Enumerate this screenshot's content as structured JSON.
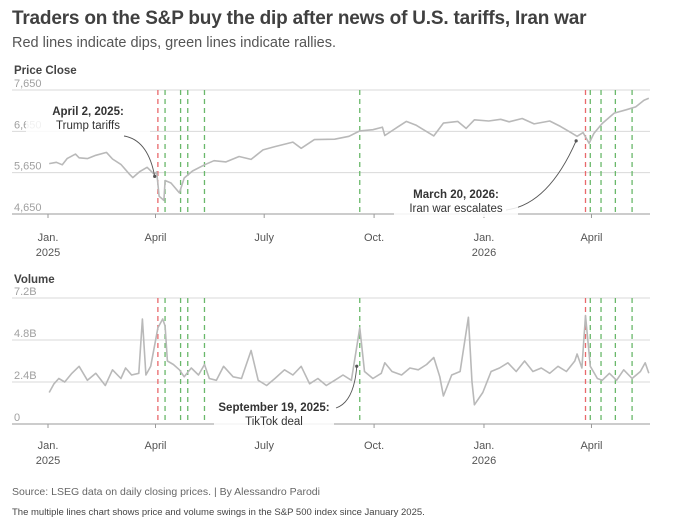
{
  "header": {
    "title": "Traders on the S&P buy the dip after news of U.S. tariffs, Iran war",
    "subtitle": "Red lines indicate dips, green lines indicate rallies."
  },
  "footer": {
    "source": "Source: LSEG data on daily closing prices. | By Alessandro Parodi",
    "description": "The multiple lines chart shows price and volume swings in the S&P 500 index since January 2025."
  },
  "colors": {
    "line": "#b9b9b9",
    "dip": "#e8696b",
    "rally": "#69b86a",
    "grid": "#d9d9d9",
    "axis": "#9a9a9a",
    "text": "#555555"
  },
  "chart_data": [
    {
      "type": "line",
      "title": "Price Close",
      "x_axis": {
        "range": [
          "2025-01-01",
          "2026-05-20"
        ],
        "ticks": [
          {
            "date": "2025-01-01",
            "label": "Jan.",
            "sublabel": "2025"
          },
          {
            "date": "2025-04-01",
            "label": "April",
            "sublabel": ""
          },
          {
            "date": "2025-07-01",
            "label": "July",
            "sublabel": ""
          },
          {
            "date": "2025-10-01",
            "label": "Oct.",
            "sublabel": ""
          },
          {
            "date": "2026-01-01",
            "label": "Jan.",
            "sublabel": "2026"
          },
          {
            "date": "2026-04-01",
            "label": "April",
            "sublabel": ""
          }
        ]
      },
      "y_axis": {
        "ylim": [
          4650,
          7650
        ],
        "ticks": [
          {
            "value": 4650,
            "label": "4,650"
          },
          {
            "value": 5650,
            "label": "5,650"
          },
          {
            "value": 6650,
            "label": "6,650"
          },
          {
            "value": 7650,
            "label": "7,650"
          }
        ]
      },
      "grid": true,
      "series": [
        {
          "points": [
            [
              "2025-01-02",
              5870
            ],
            [
              "2025-01-08",
              5900
            ],
            [
              "2025-01-13",
              5840
            ],
            [
              "2025-01-17",
              5990
            ],
            [
              "2025-01-24",
              6100
            ],
            [
              "2025-01-27",
              6010
            ],
            [
              "2025-02-03",
              5990
            ],
            [
              "2025-02-10",
              6070
            ],
            [
              "2025-02-19",
              6140
            ],
            [
              "2025-02-24",
              5980
            ],
            [
              "2025-03-03",
              5850
            ],
            [
              "2025-03-10",
              5620
            ],
            [
              "2025-03-13",
              5530
            ],
            [
              "2025-03-19",
              5680
            ],
            [
              "2025-03-25",
              5780
            ],
            [
              "2025-03-31",
              5610
            ],
            [
              "2025-04-02",
              5670
            ],
            [
              "2025-04-04",
              5080
            ],
            [
              "2025-04-08",
              4980
            ],
            [
              "2025-04-09",
              5460
            ],
            [
              "2025-04-14",
              5400
            ],
            [
              "2025-04-21",
              5160
            ],
            [
              "2025-04-25",
              5520
            ],
            [
              "2025-05-02",
              5690
            ],
            [
              "2025-05-12",
              5840
            ],
            [
              "2025-05-20",
              5940
            ],
            [
              "2025-05-30",
              5910
            ],
            [
              "2025-06-10",
              6040
            ],
            [
              "2025-06-20",
              5970
            ],
            [
              "2025-06-30",
              6200
            ],
            [
              "2025-07-10",
              6280
            ],
            [
              "2025-07-25",
              6390
            ],
            [
              "2025-08-01",
              6240
            ],
            [
              "2025-08-12",
              6450
            ],
            [
              "2025-08-29",
              6460
            ],
            [
              "2025-09-10",
              6530
            ],
            [
              "2025-09-19",
              6660
            ],
            [
              "2025-09-30",
              6690
            ],
            [
              "2025-10-08",
              6750
            ],
            [
              "2025-10-10",
              6550
            ],
            [
              "2025-10-20",
              6740
            ],
            [
              "2025-10-28",
              6890
            ],
            [
              "2025-11-05",
              6800
            ],
            [
              "2025-11-20",
              6540
            ],
            [
              "2025-11-28",
              6850
            ],
            [
              "2025-12-10",
              6890
            ],
            [
              "2025-12-17",
              6720
            ],
            [
              "2025-12-24",
              6930
            ],
            [
              "2026-01-05",
              6900
            ],
            [
              "2026-01-15",
              6940
            ],
            [
              "2026-01-22",
              6880
            ],
            [
              "2026-02-02",
              6960
            ],
            [
              "2026-02-12",
              6830
            ],
            [
              "2026-02-25",
              6900
            ],
            [
              "2026-03-06",
              6770
            ],
            [
              "2026-03-13",
              6650
            ],
            [
              "2026-03-20",
              6530
            ],
            [
              "2026-03-25",
              6620
            ],
            [
              "2026-03-30",
              6360
            ],
            [
              "2026-04-03",
              6600
            ],
            [
              "2026-04-10",
              6840
            ],
            [
              "2026-04-20",
              7090
            ],
            [
              "2026-04-30",
              7170
            ],
            [
              "2026-05-08",
              7240
            ],
            [
              "2026-05-15",
              7400
            ],
            [
              "2026-05-19",
              7450
            ]
          ]
        }
      ],
      "event_lines": {
        "dips": [
          "2025-04-03",
          "2026-03-27"
        ],
        "rallies": [
          "2025-04-09",
          "2025-04-22",
          "2025-04-28",
          "2025-05-12",
          "2025-09-19",
          "2026-03-31",
          "2026-04-09",
          "2026-04-21",
          "2026-05-05"
        ]
      },
      "annotations": [
        {
          "date": "2025-04-02",
          "bold": "April 2, 2025:",
          "text": "Trump tariffs"
        },
        {
          "date": "2026-03-20",
          "bold": "March 20, 2026:",
          "text": "Iran war escalates"
        }
      ]
    },
    {
      "type": "line",
      "title": "Volume",
      "x_axis": {
        "range": [
          "2025-01-01",
          "2026-05-20"
        ],
        "ticks": [
          {
            "date": "2025-01-01",
            "label": "Jan.",
            "sublabel": "2025"
          },
          {
            "date": "2025-04-01",
            "label": "April",
            "sublabel": ""
          },
          {
            "date": "2025-07-01",
            "label": "July",
            "sublabel": ""
          },
          {
            "date": "2025-10-01",
            "label": "Oct.",
            "sublabel": ""
          },
          {
            "date": "2026-01-01",
            "label": "Jan.",
            "sublabel": "2026"
          },
          {
            "date": "2026-04-01",
            "label": "April",
            "sublabel": ""
          }
        ]
      },
      "y_axis": {
        "ylim": [
          0,
          7.2
        ],
        "unit": "billions",
        "ticks": [
          {
            "value": 0,
            "label": "0"
          },
          {
            "value": 2.4,
            "label": "2.4B"
          },
          {
            "value": 4.8,
            "label": "4.8B"
          },
          {
            "value": 7.2,
            "label": "7.2B"
          }
        ]
      },
      "grid": true,
      "series": [
        {
          "points": [
            [
              "2025-01-02",
              1.8
            ],
            [
              "2025-01-06",
              2.3
            ],
            [
              "2025-01-10",
              2.6
            ],
            [
              "2025-01-15",
              2.4
            ],
            [
              "2025-01-21",
              2.9
            ],
            [
              "2025-01-27",
              3.3
            ],
            [
              "2025-02-03",
              2.5
            ],
            [
              "2025-02-10",
              2.9
            ],
            [
              "2025-02-18",
              2.2
            ],
            [
              "2025-02-24",
              3.1
            ],
            [
              "2025-03-03",
              2.6
            ],
            [
              "2025-03-07",
              3.2
            ],
            [
              "2025-03-12",
              2.8
            ],
            [
              "2025-03-18",
              2.9
            ],
            [
              "2025-03-21",
              6.0
            ],
            [
              "2025-03-24",
              2.8
            ],
            [
              "2025-03-28",
              3.3
            ],
            [
              "2025-04-03",
              5.5
            ],
            [
              "2025-04-07",
              6.0
            ],
            [
              "2025-04-09",
              5.6
            ],
            [
              "2025-04-11",
              3.6
            ],
            [
              "2025-04-16",
              3.4
            ],
            [
              "2025-04-21",
              3.1
            ],
            [
              "2025-04-25",
              2.7
            ],
            [
              "2025-05-01",
              3.2
            ],
            [
              "2025-05-07",
              2.8
            ],
            [
              "2025-05-12",
              3.4
            ],
            [
              "2025-05-16",
              2.6
            ],
            [
              "2025-05-22",
              2.5
            ],
            [
              "2025-05-28",
              3.3
            ],
            [
              "2025-06-05",
              2.7
            ],
            [
              "2025-06-12",
              2.6
            ],
            [
              "2025-06-20",
              4.2
            ],
            [
              "2025-06-26",
              2.5
            ],
            [
              "2025-07-03",
              2.2
            ],
            [
              "2025-07-10",
              2.6
            ],
            [
              "2025-07-18",
              3.1
            ],
            [
              "2025-07-25",
              2.8
            ],
            [
              "2025-08-01",
              3.3
            ],
            [
              "2025-08-08",
              2.3
            ],
            [
              "2025-08-15",
              2.6
            ],
            [
              "2025-08-22",
              2.2
            ],
            [
              "2025-08-29",
              2.5
            ],
            [
              "2025-09-05",
              2.8
            ],
            [
              "2025-09-12",
              2.5
            ],
            [
              "2025-09-19",
              5.5
            ],
            [
              "2025-09-23",
              3.0
            ],
            [
              "2025-09-30",
              2.6
            ],
            [
              "2025-10-07",
              2.9
            ],
            [
              "2025-10-10",
              3.5
            ],
            [
              "2025-10-16",
              3.0
            ],
            [
              "2025-10-24",
              2.8
            ],
            [
              "2025-10-31",
              3.2
            ],
            [
              "2025-11-07",
              3.1
            ],
            [
              "2025-11-14",
              3.4
            ],
            [
              "2025-11-20",
              3.8
            ],
            [
              "2025-11-25",
              2.7
            ],
            [
              "2025-11-28",
              1.6
            ],
            [
              "2025-12-05",
              2.8
            ],
            [
              "2025-12-12",
              3.0
            ],
            [
              "2025-12-19",
              6.1
            ],
            [
              "2025-12-22",
              2.4
            ],
            [
              "2025-12-24",
              1.1
            ],
            [
              "2025-12-31",
              1.8
            ],
            [
              "2026-01-07",
              3.0
            ],
            [
              "2026-01-14",
              3.2
            ],
            [
              "2026-01-21",
              3.5
            ],
            [
              "2026-01-28",
              3.0
            ],
            [
              "2026-02-04",
              3.6
            ],
            [
              "2026-02-11",
              3.0
            ],
            [
              "2026-02-18",
              3.2
            ],
            [
              "2026-02-25",
              2.9
            ],
            [
              "2026-03-04",
              3.3
            ],
            [
              "2026-03-11",
              3.0
            ],
            [
              "2026-03-18",
              3.6
            ],
            [
              "2026-03-20",
              4.0
            ],
            [
              "2026-03-24",
              3.2
            ],
            [
              "2026-03-27",
              6.2
            ],
            [
              "2026-03-31",
              3.3
            ],
            [
              "2026-04-06",
              2.6
            ],
            [
              "2026-04-10",
              2.5
            ],
            [
              "2026-04-16",
              2.9
            ],
            [
              "2026-04-22",
              2.5
            ],
            [
              "2026-04-28",
              3.1
            ],
            [
              "2026-05-05",
              2.6
            ],
            [
              "2026-05-12",
              3.0
            ],
            [
              "2026-05-16",
              3.5
            ],
            [
              "2026-05-19",
              2.9
            ]
          ]
        }
      ],
      "event_lines": {
        "dips": [
          "2025-04-03",
          "2026-03-27"
        ],
        "rallies": [
          "2025-04-09",
          "2025-04-22",
          "2025-04-28",
          "2025-05-12",
          "2025-09-19",
          "2026-03-31",
          "2026-04-09",
          "2026-04-21",
          "2026-05-05"
        ]
      },
      "annotations": [
        {
          "date": "2025-09-19",
          "bold": "September 19, 2025:",
          "text": "TikTok deal"
        }
      ]
    }
  ]
}
